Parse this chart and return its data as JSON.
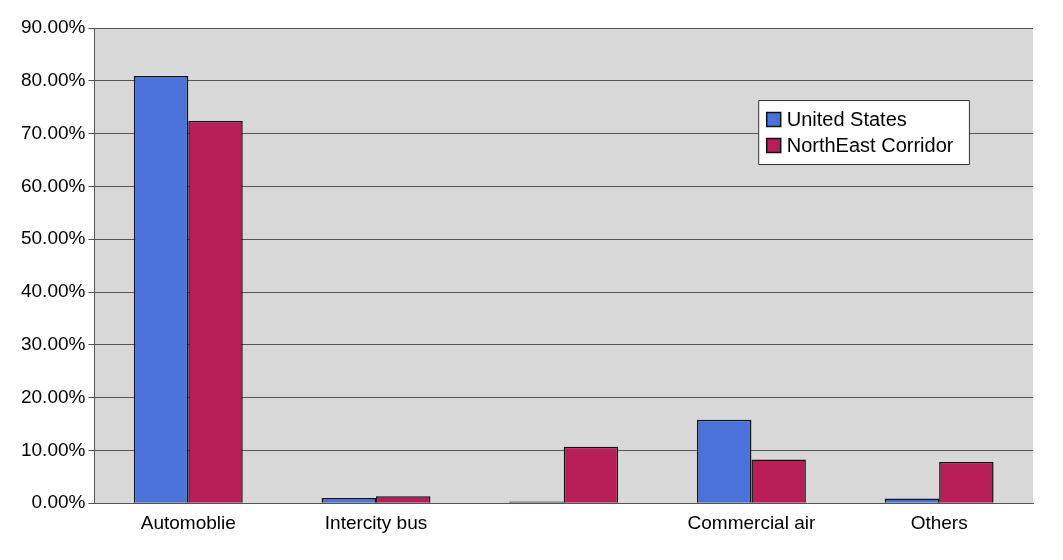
{
  "chart_data": {
    "type": "bar",
    "categories": [
      "Automoblie",
      "Intercity bus",
      null,
      "Commercial air",
      "Others"
    ],
    "series": [
      {
        "name": "United States",
        "color": "#4a72d8",
        "values": [
          80.9,
          1.0,
          0.3,
          15.8,
          0.9
        ]
      },
      {
        "name": "NorthEast Corridor",
        "color": "#b81e58",
        "values": [
          72.4,
          1.3,
          10.7,
          8.3,
          7.8
        ]
      }
    ],
    "ylim": [
      0,
      90
    ],
    "yticks": [
      {
        "value": 0,
        "label": "0.00%"
      },
      {
        "value": 10,
        "label": "10.00%"
      },
      {
        "value": 20,
        "label": "20.00%"
      },
      {
        "value": 30,
        "label": "30.00%"
      },
      {
        "value": 40,
        "label": "40.00%"
      },
      {
        "value": 50,
        "label": "50.00%"
      },
      {
        "value": 60,
        "label": "60.00%"
      },
      {
        "value": 70,
        "label": "70.00%"
      },
      {
        "value": 80,
        "label": "80.00%"
      },
      {
        "value": 90,
        "label": "90.00%"
      }
    ],
    "grid": "y",
    "legend": "top right"
  }
}
